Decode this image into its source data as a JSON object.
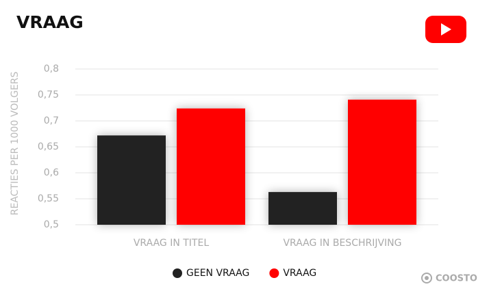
{
  "chart_data": {
    "type": "grouped_bar",
    "title": "VRAAG",
    "y_label": "REACTIES PER 1000 VOLGERS",
    "categories": [
      "VRAAG IN TITEL",
      "VRAAG IN BESCHRIJVING"
    ],
    "series": [
      {
        "name": "GEEN VRAAG",
        "color": "#222222",
        "values": [
          0.672,
          0.563
        ]
      },
      {
        "name": "VRAAG",
        "color": "#ff0000",
        "values": [
          0.724,
          0.741
        ]
      }
    ],
    "ylim": [
      0.5,
      0.8
    ],
    "yticks": [
      {
        "value": 0.5,
        "label": "0,5"
      },
      {
        "value": 0.55,
        "label": "0,55"
      },
      {
        "value": 0.6,
        "label": "0,6"
      },
      {
        "value": 0.65,
        "label": "0,65"
      },
      {
        "value": 0.7,
        "label": "0,7"
      },
      {
        "value": 0.75,
        "label": "0,75"
      },
      {
        "value": 0.8,
        "label": "0,8"
      }
    ],
    "grid": true,
    "legend": "bottom",
    "brand": "COOSTO"
  }
}
